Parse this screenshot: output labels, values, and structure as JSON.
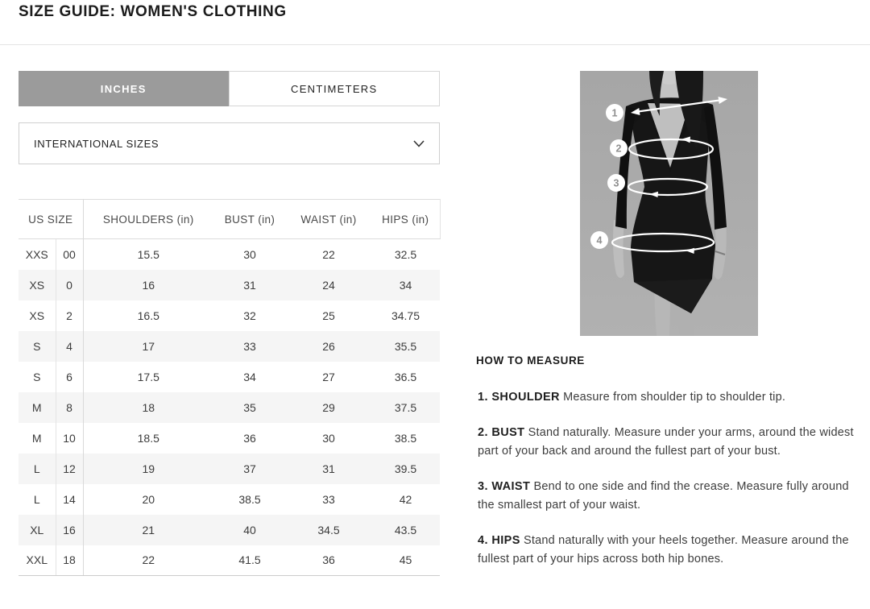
{
  "page": {
    "title": "SIZE GUIDE: WOMEN'S CLOTHING"
  },
  "tabs": [
    {
      "label": "INCHES",
      "active": true
    },
    {
      "label": "CENTIMETERS",
      "active": false
    }
  ],
  "size_selector": {
    "value": "INTERNATIONAL SIZES"
  },
  "size_table": {
    "headers": {
      "us_size": "US SIZE",
      "shoulders": "SHOULDERS (in)",
      "bust": "BUST (in)",
      "waist": "WAIST (in)",
      "hips": "HIPS (in)"
    },
    "rows": [
      {
        "size_letter": "XXS",
        "size_number": "00",
        "shoulders": "15.5",
        "bust": "30",
        "waist": "22",
        "hips": "32.5"
      },
      {
        "size_letter": "XS",
        "size_number": "0",
        "shoulders": "16",
        "bust": "31",
        "waist": "24",
        "hips": "34"
      },
      {
        "size_letter": "XS",
        "size_number": "2",
        "shoulders": "16.5",
        "bust": "32",
        "waist": "25",
        "hips": "34.75"
      },
      {
        "size_letter": "S",
        "size_number": "4",
        "shoulders": "17",
        "bust": "33",
        "waist": "26",
        "hips": "35.5"
      },
      {
        "size_letter": "S",
        "size_number": "6",
        "shoulders": "17.5",
        "bust": "34",
        "waist": "27",
        "hips": "36.5"
      },
      {
        "size_letter": "M",
        "size_number": "8",
        "shoulders": "18",
        "bust": "35",
        "waist": "29",
        "hips": "37.5"
      },
      {
        "size_letter": "M",
        "size_number": "10",
        "shoulders": "18.5",
        "bust": "36",
        "waist": "30",
        "hips": "38.5"
      },
      {
        "size_letter": "L",
        "size_number": "12",
        "shoulders": "19",
        "bust": "37",
        "waist": "31",
        "hips": "39.5"
      },
      {
        "size_letter": "L",
        "size_number": "14",
        "shoulders": "20",
        "bust": "38.5",
        "waist": "33",
        "hips": "42"
      },
      {
        "size_letter": "XL",
        "size_number": "16",
        "shoulders": "21",
        "bust": "40",
        "waist": "34.5",
        "hips": "43.5"
      },
      {
        "size_letter": "XXL",
        "size_number": "18",
        "shoulders": "22",
        "bust": "41.5",
        "waist": "36",
        "hips": "45"
      }
    ]
  },
  "figure": {
    "markers": [
      "1",
      "2",
      "3",
      "4"
    ]
  },
  "how_to_measure": {
    "heading": "HOW TO MEASURE",
    "steps": [
      {
        "number": "1.",
        "label": "SHOULDER",
        "text": "Measure from shoulder tip to shoulder tip."
      },
      {
        "number": "2.",
        "label": "BUST",
        "text": "Stand naturally. Measure under your arms, around the widest part of your back and around the fullest part of your bust."
      },
      {
        "number": "3.",
        "label": "WAIST",
        "text": "Bend to one side and find the crease. Measure fully around the smallest part of your waist."
      },
      {
        "number": "4.",
        "label": "HIPS",
        "text": "Stand naturally with your heels together. Measure around the fullest part of your hips across both hip bones."
      }
    ]
  },
  "colors": {
    "tab_active_bg": "#9b9b9b",
    "row_alt_bg": "#f5f5f5",
    "photo_bg": "#ababab",
    "dress": "#161616"
  }
}
